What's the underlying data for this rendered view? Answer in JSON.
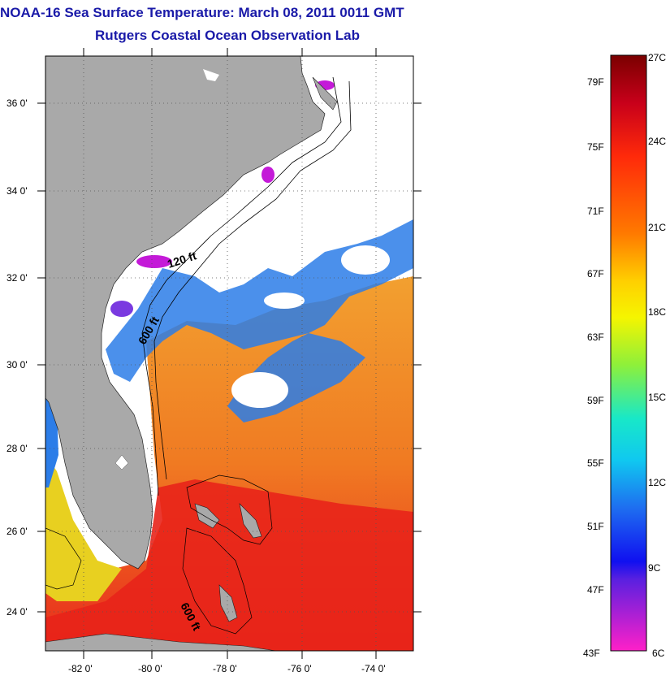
{
  "title": "NOAA-16 Sea Surface Temperature:  March 08, 2011 0011 GMT",
  "subtitle": "Rutgers Coastal Ocean Observation Lab",
  "map": {
    "lat_labels": [
      "36 0'",
      "34 0'",
      "32 0'",
      "30 0'",
      "28 0'",
      "26 0'",
      "24 0'"
    ],
    "lon_labels": [
      "-82 0'",
      "-80 0'",
      "-78 0'",
      "-76 0'",
      "-74 0'"
    ],
    "contour_labels": [
      "120 ft",
      "600 ft",
      "600 ft"
    ],
    "colors": {
      "land": "#a9a9a9",
      "cloud": "#ffffff",
      "warm": "#e8261c",
      "mild": "#f08a20",
      "cool": "#2a6fe0",
      "cold": "#c21ad6"
    }
  },
  "colorbar": {
    "fahrenheit_labels": [
      "79F",
      "75F",
      "71F",
      "67F",
      "63F",
      "59F",
      "55F",
      "51F",
      "47F",
      "43F"
    ],
    "celsius_labels": [
      "27C",
      "24C",
      "21C",
      "18C",
      "15C",
      "12C",
      "9C",
      "6C"
    ]
  }
}
